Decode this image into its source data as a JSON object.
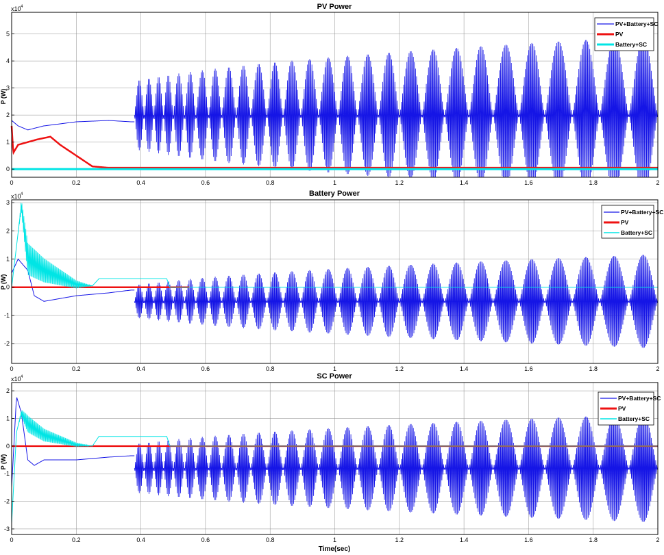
{
  "colors": {
    "pv_battery_sc": "#1515e6",
    "pv": "#ee1111",
    "battery_sc": "#00e5e5",
    "grid": "#8c8c8c",
    "axes": "#000000"
  },
  "x_axis": {
    "label": "Time(sec)",
    "lim": [
      0,
      2
    ],
    "ticks": [
      "0",
      "0.2",
      "0.4",
      "0.6",
      "0.8",
      "1",
      "1.2",
      "1.4",
      "1.6",
      "1.8",
      "2"
    ]
  },
  "chart_data": [
    {
      "type": "line",
      "title": "PV Power",
      "xlabel": "",
      "ylabel": "P (W)",
      "y_exponent": "x10^4",
      "y_exponent_base": "x10",
      "y_exponent_power": "4",
      "ylim": [
        -0.3,
        5.8
      ],
      "yticks": [
        "0",
        "1",
        "2",
        "3",
        "4",
        "5"
      ],
      "grid": true,
      "legend_position": "top-right",
      "legend": [
        "PV+Battery+SC",
        "PV",
        "Battery+SC"
      ],
      "series": [
        {
          "name": "PV+Battery+SC",
          "color": "#1515e6",
          "description_points": {
            "x": [
              0,
              0.02,
              0.05,
              0.1,
              0.2,
              0.3,
              0.37
            ],
            "y": [
              1.8,
              1.6,
              1.45,
              1.6,
              1.75,
              1.8,
              1.75
            ]
          },
          "oscillation": {
            "x_start": 0.38,
            "center": 2.0,
            "envelope_peak_amplitude_start": 1.3,
            "envelope_peak_amplitude_end": 2.9,
            "burst_boundaries": [
              0.38,
              0.41,
              0.44,
              0.47,
              0.5,
              0.535,
              0.57,
              0.61,
              0.65,
              0.695,
              0.74,
              0.79,
              0.84,
              0.895,
              0.95,
              1.01,
              1.07,
              1.135,
              1.2,
              1.27,
              1.34,
              1.415,
              1.49,
              1.57,
              1.65,
              1.735,
              1.82,
              1.91,
              2.0
            ]
          }
        },
        {
          "name": "PV",
          "color": "#ee1111",
          "x": [
            0,
            0.005,
            0.02,
            0.05,
            0.08,
            0.1,
            0.12,
            0.15,
            0.2,
            0.25,
            0.3,
            2.0
          ],
          "y": [
            1.6,
            0.6,
            0.9,
            1.0,
            1.1,
            1.15,
            1.2,
            0.9,
            0.5,
            0.1,
            0.05,
            0.05
          ]
        },
        {
          "name": "Battery+SC",
          "color": "#00e5e5",
          "x": [
            0,
            2.0
          ],
          "y": [
            0.0,
            0.0
          ]
        }
      ]
    },
    {
      "type": "line",
      "title": "Battery Power",
      "xlabel": "",
      "ylabel": "P (W)",
      "y_exponent": "x10^4",
      "y_exponent_base": "x10",
      "y_exponent_power": "4",
      "ylim": [
        -2.7,
        3.1
      ],
      "yticks": [
        "-2",
        "-1",
        "0",
        "1",
        "2",
        "3"
      ],
      "grid": true,
      "legend_position": "top-right",
      "legend": [
        "PV+Battery+SC",
        "PV",
        "Battery+SC"
      ],
      "series": [
        {
          "name": "PV+Battery+SC",
          "color": "#1515e6",
          "description_points": {
            "x": [
              0,
              0.02,
              0.05,
              0.07,
              0.1,
              0.2,
              0.3,
              0.37
            ],
            "y": [
              0.5,
              1.0,
              0.6,
              -0.3,
              -0.5,
              -0.3,
              -0.2,
              -0.1
            ]
          },
          "oscillation": {
            "x_start": 0.38,
            "center": -0.5,
            "envelope_peak_amplitude_start": 0.6,
            "envelope_peak_amplitude_end": 1.65,
            "burst_boundaries": [
              0.38,
              0.41,
              0.44,
              0.47,
              0.5,
              0.535,
              0.57,
              0.61,
              0.65,
              0.695,
              0.74,
              0.79,
              0.84,
              0.895,
              0.95,
              1.01,
              1.07,
              1.135,
              1.2,
              1.27,
              1.34,
              1.415,
              1.49,
              1.57,
              1.65,
              1.735,
              1.82,
              1.91,
              2.0
            ]
          }
        },
        {
          "name": "PV",
          "color": "#ee1111",
          "x": [
            0,
            0.55
          ],
          "y": [
            0.0,
            0.0
          ]
        },
        {
          "name": "Battery+SC",
          "color": "#00e5e5",
          "description_points": {
            "x": [
              0,
              0.03,
              0.05,
              0.1,
              0.2,
              0.25,
              0.27,
              0.48,
              0.49,
              2.0
            ],
            "y": [
              0.0,
              2.9,
              1.0,
              0.6,
              0.1,
              0.05,
              0.3,
              0.3,
              0.0,
              0.0
            ]
          },
          "oscillation": {
            "x_start": 0.02,
            "x_end": 0.25,
            "center": 0.9,
            "envelope_peak_amplitude_start": 1.3,
            "envelope_peak_amplitude_end": 0.0
          }
        }
      ]
    },
    {
      "type": "line",
      "title": "SC Power",
      "xlabel": "Time(sec)",
      "ylabel": "P (W)",
      "y_exponent": "x10^4",
      "y_exponent_base": "x10",
      "y_exponent_power": "4",
      "ylim": [
        -3.2,
        2.3
      ],
      "yticks": [
        "-3",
        "-2",
        "-1",
        "0",
        "1",
        "2"
      ],
      "grid": true,
      "legend_position": "top-right",
      "legend": [
        "PV+Battery+SC",
        "PV",
        "Battery+SC"
      ],
      "series": [
        {
          "name": "PV+Battery+SC",
          "color": "#1515e6",
          "description_points": {
            "x": [
              0,
              0.015,
              0.03,
              0.05,
              0.07,
              0.1,
              0.2,
              0.3,
              0.37
            ],
            "y": [
              -1.5,
              1.8,
              1.2,
              -0.5,
              -0.7,
              -0.5,
              -0.5,
              -0.4,
              -0.35
            ]
          },
          "oscillation": {
            "x_start": 0.38,
            "center": -0.8,
            "envelope_peak_amplitude_start": 0.9,
            "envelope_peak_amplitude_end": 1.95,
            "burst_boundaries": [
              0.38,
              0.41,
              0.44,
              0.47,
              0.5,
              0.535,
              0.57,
              0.61,
              0.65,
              0.695,
              0.74,
              0.79,
              0.84,
              0.895,
              0.95,
              1.01,
              1.07,
              1.135,
              1.2,
              1.27,
              1.34,
              1.415,
              1.49,
              1.57,
              1.65,
              1.735,
              1.82,
              1.91,
              2.0
            ]
          }
        },
        {
          "name": "PV",
          "color": "#ee1111",
          "x": [
            0,
            2.0
          ],
          "y": [
            0.0,
            0.0
          ]
        },
        {
          "name": "Battery+SC",
          "color": "#00e5e5",
          "description_points": {
            "x": [
              0,
              0.015,
              0.03,
              0.05,
              0.1,
              0.2,
              0.25,
              0.27,
              0.48,
              0.49,
              2.0
            ],
            "y": [
              -2.8,
              0.5,
              1.2,
              0.8,
              0.4,
              0.05,
              0.0,
              0.35,
              0.35,
              0.0,
              0.0
            ]
          },
          "oscillation": {
            "x_start": 0.02,
            "x_end": 0.25,
            "center": 0.55,
            "envelope_peak_amplitude_start": 0.7,
            "envelope_peak_amplitude_end": 0.0
          }
        }
      ]
    }
  ]
}
